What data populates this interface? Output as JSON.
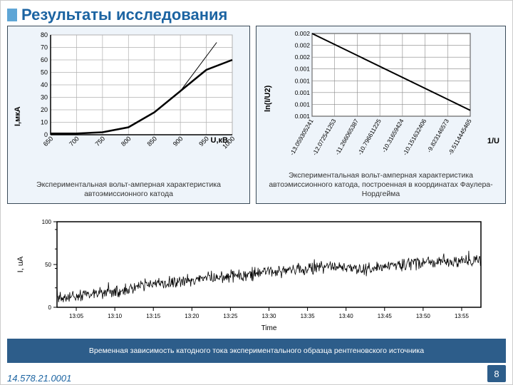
{
  "title": "Результаты исследования",
  "footer_code": "14.578.21.0001",
  "page_number": "8",
  "left_chart": {
    "type": "line",
    "ylabel": "I,мкА",
    "xlabel": "U,кВ",
    "caption": "Экспериментальная вольт-амперная характеристика автоэмиссионного катода",
    "x_ticks": [
      "650",
      "700",
      "750",
      "800",
      "850",
      "900",
      "950",
      "1000"
    ],
    "y_ticks": [
      "0",
      "10",
      "20",
      "30",
      "40",
      "50",
      "60",
      "70",
      "80"
    ],
    "ylim": [
      0,
      80
    ],
    "xlim": [
      650,
      1000
    ],
    "background": "#ffffff",
    "grid_color": "#b0b0b0",
    "axis_color": "#000000",
    "line_color": "#000000",
    "line_width": 2.5,
    "series": [
      {
        "x": [
          650,
          700,
          750,
          800,
          850,
          900,
          950,
          1000
        ],
        "y": [
          1,
          1,
          2,
          6,
          18,
          35,
          52,
          60
        ]
      },
      {
        "x": [
          900,
          970
        ],
        "y": [
          35,
          74
        ],
        "width": 1,
        "style": "thin"
      }
    ],
    "tick_fontsize": 9
  },
  "right_chart": {
    "type": "line",
    "ylabel": "ln(I/U2)",
    "xlabel": "1/U",
    "caption": "Экспериментальная вольт-амперная характеристика автоэмиссионного катода, построенная в координатах Фаулера-Нордгейма",
    "x_ticks": [
      "-13.059305241",
      "-12.072541253",
      "-11.266065387",
      "-10.796611225",
      "-10.31659424",
      "-10.151632406",
      "-9.823146573",
      "-9.5114445465"
    ],
    "y_ticks": [
      "0.001",
      "0.001",
      "0.001",
      "0.001",
      "0.001",
      "0.002",
      "0.002",
      "0.002"
    ],
    "ylim": [
      0.0006,
      0.002
    ],
    "xlim": [
      0,
      7
    ],
    "background": "#ffffff",
    "grid_color": "#888888",
    "axis_color": "#000000",
    "line_color": "#000000",
    "line_width": 2,
    "series": [
      {
        "px": [
          0,
          7
        ],
        "py": [
          0.002,
          0.0007
        ]
      }
    ],
    "tick_fontsize": 8.5
  },
  "bottom_chart": {
    "type": "timeseries-noisy",
    "ylabel": "I, uA",
    "xlabel": "Time",
    "caption": "Временная зависимость катодного тока экспериментального образца рентгеновского источника",
    "x_ticks": [
      "13:05",
      "13:10",
      "13:15",
      "13:20",
      "13:25",
      "13:30",
      "13:35",
      "13:40",
      "13:45",
      "13:50",
      "13:55"
    ],
    "y_ticks": [
      "0",
      "50",
      "100"
    ],
    "ylim": [
      0,
      110
    ],
    "background": "#ffffff",
    "axis_color": "#000000",
    "line_color": "#000000",
    "tick_fontsize": 8,
    "trend": [
      10,
      15,
      18,
      20,
      25,
      30,
      32,
      35,
      38,
      40,
      42,
      45,
      48,
      50,
      52,
      50,
      48,
      52,
      55,
      58,
      60,
      58,
      60
    ],
    "noise_amp": 12
  },
  "colors": {
    "title": "#1c64a2",
    "box_border": "#3a4a58",
    "box_bg": "#eef4fa",
    "bar_bg": "#2d5d8a",
    "title_mark": "#5fa6d6"
  }
}
